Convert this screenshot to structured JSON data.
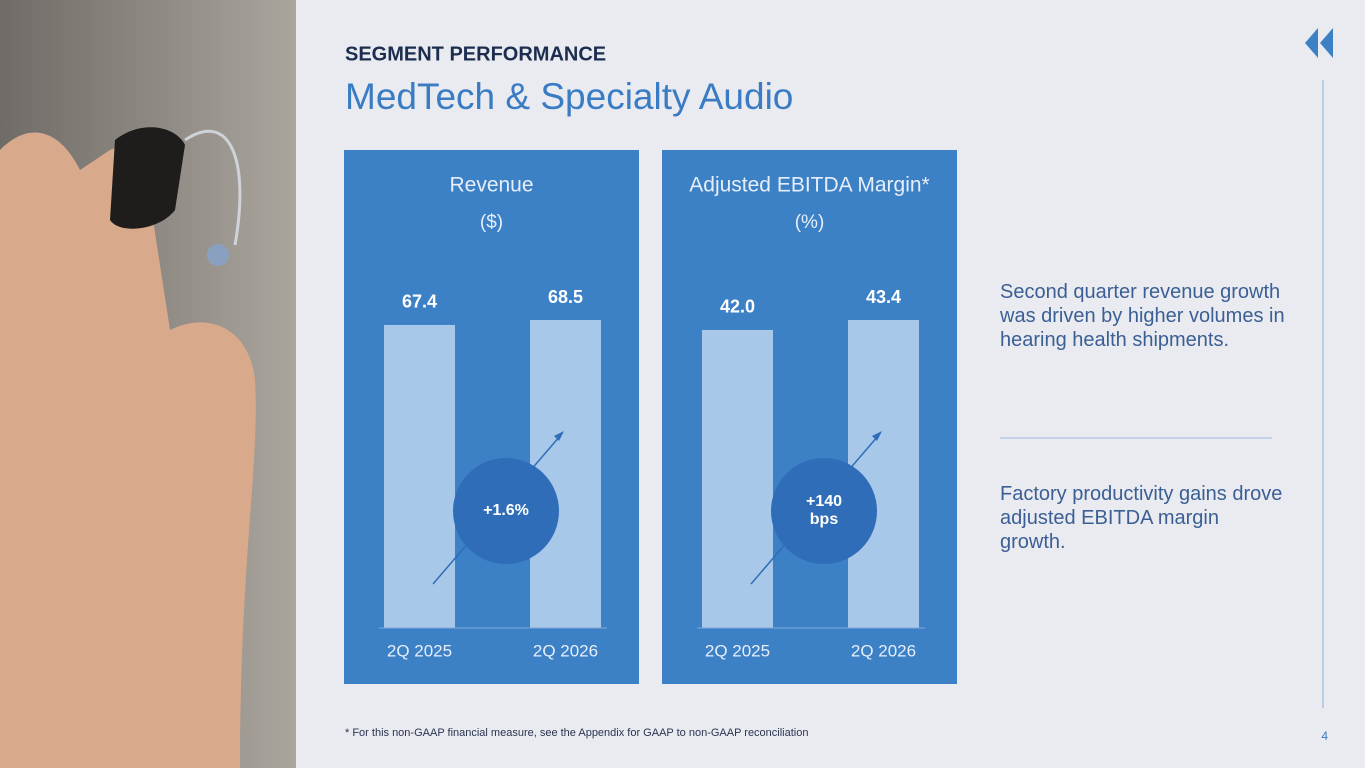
{
  "header": {
    "kicker": "SEGMENT PERFORMANCE",
    "title": "MedTech & Specialty Audio"
  },
  "chart_data": [
    {
      "type": "bar",
      "title": "Revenue",
      "subtitle": "($)",
      "categories": [
        "2Q 2025",
        "2Q 2026"
      ],
      "values": [
        67.4,
        68.5
      ],
      "color": "#a8c8ea",
      "annotation": "+1.6%"
    },
    {
      "type": "bar",
      "title": "Adjusted EBITDA Margin*",
      "subtitle": "(%)",
      "categories": [
        "2Q 2025",
        "2Q 2026"
      ],
      "values": [
        42.0,
        43.4
      ],
      "value_labels": [
        "42.0",
        "43.4"
      ],
      "color": "#a8c8ea",
      "annotation": "+140 bps"
    }
  ],
  "commentary": [
    "Second quarter revenue growth was driven by higher volumes in hearing health shipments.",
    "Factory productivity gains drove adjusted EBITDA margin growth."
  ],
  "footnote": "* For this non-GAAP financial measure, see the Appendix for GAAP to non-GAAP reconciliation",
  "page_number": "4"
}
